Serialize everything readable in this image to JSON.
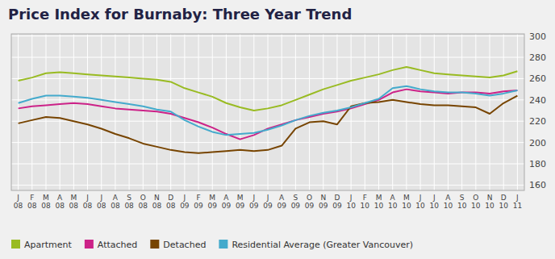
{
  "chart_data": {
    "type": "line",
    "title": "Price Index for Burnaby: Three Year Trend",
    "categories": [
      "J\n08",
      "F\n08",
      "M\n08",
      "A\n08",
      "M\n08",
      "J\n08",
      "J\n08",
      "A\n08",
      "S\n08",
      "O\n08",
      "N\n08",
      "D\n08",
      "J\n09",
      "F\n09",
      "M\n09",
      "A\n09",
      "M\n09",
      "J\n09",
      "J\n09",
      "A\n09",
      "S\n09",
      "O\n09",
      "N\n09",
      "D\n09",
      "J\n10",
      "F\n10",
      "M\n10",
      "A\n10",
      "M\n10",
      "J\n10",
      "J\n10",
      "A\n10",
      "S\n10",
      "O\n10",
      "N\n10",
      "D\n10",
      "J\n11"
    ],
    "series": [
      {
        "name": "Apartment",
        "color": "#99bb22",
        "values": [
          258,
          261,
          265,
          266,
          265,
          264,
          263,
          262,
          261,
          260,
          259,
          257,
          251,
          247,
          243,
          237,
          233,
          230,
          232,
          235,
          240,
          245,
          250,
          254,
          258,
          261,
          264,
          268,
          271,
          268,
          265,
          264,
          263,
          262,
          261,
          263,
          267
        ]
      },
      {
        "name": "Attached",
        "color": "#cc2288",
        "values": [
          232,
          234,
          235,
          236,
          237,
          236,
          234,
          232,
          231,
          230,
          229,
          227,
          223,
          219,
          214,
          208,
          203,
          207,
          213,
          217,
          221,
          224,
          227,
          229,
          232,
          236,
          240,
          247,
          250,
          248,
          247,
          246,
          247,
          247,
          246,
          248,
          249
        ]
      },
      {
        "name": "Detached",
        "color": "#774400",
        "values": [
          218,
          221,
          224,
          223,
          220,
          217,
          213,
          208,
          204,
          199,
          196,
          193,
          191,
          190,
          191,
          192,
          193,
          192,
          193,
          197,
          213,
          219,
          220,
          217,
          234,
          237,
          238,
          240,
          238,
          236,
          235,
          235,
          234,
          233,
          227,
          237,
          244
        ]
      },
      {
        "name": "Residential Average (Greater Vancouver)",
        "color": "#44aacc",
        "values": [
          237,
          241,
          244,
          244,
          243,
          242,
          240,
          238,
          236,
          234,
          231,
          229,
          221,
          215,
          210,
          207,
          208,
          209,
          212,
          216,
          221,
          225,
          228,
          230,
          233,
          237,
          241,
          251,
          253,
          250,
          248,
          247,
          247,
          246,
          244,
          246,
          249
        ]
      }
    ],
    "ylim": [
      155,
      302
    ],
    "yticks": [
      160,
      180,
      200,
      220,
      240,
      260,
      280,
      300
    ],
    "grid": true,
    "legend": "bottom"
  }
}
